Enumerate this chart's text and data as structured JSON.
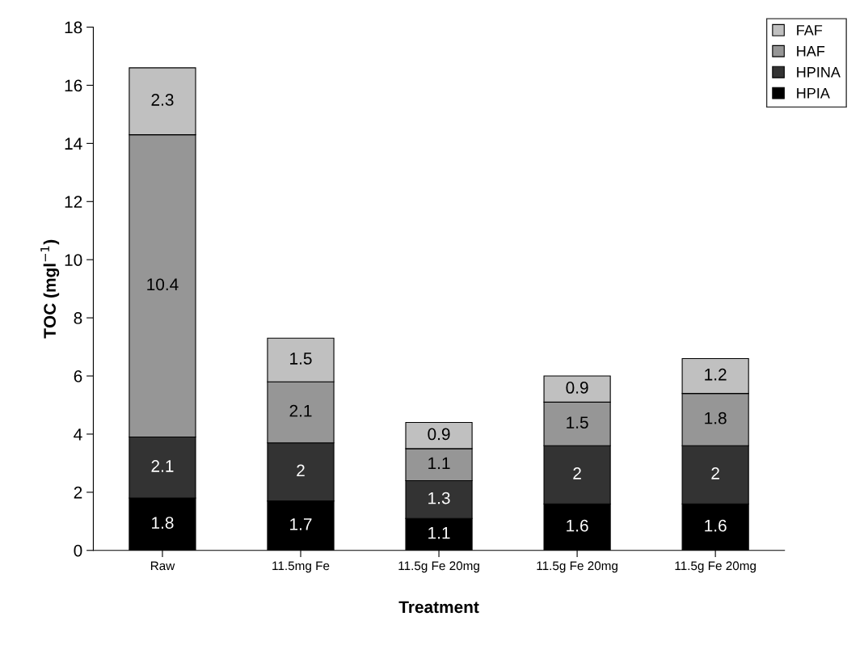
{
  "chart_data": {
    "type": "bar",
    "stacked": true,
    "xlabel": "Treatment",
    "ylabel": "TOC (mgl$^{−1}$)",
    "categories": [
      "Raw",
      "11.5mg Fe",
      "11.5g Fe 20mg",
      "11.5g Fe 20mg",
      "11.5g Fe 20mg"
    ],
    "series": [
      {
        "name": "HPIA",
        "color": "#000000",
        "values": [
          1.8,
          1.7,
          1.1,
          1.6,
          1.6
        ]
      },
      {
        "name": "HPINA",
        "color": "#333333",
        "values": [
          2.1,
          2,
          1.3,
          2,
          2
        ]
      },
      {
        "name": "HAF",
        "color": "#969696",
        "values": [
          10.4,
          2.1,
          1.1,
          1.5,
          1.8
        ]
      },
      {
        "name": "FAF",
        "color": "#c0c0c0",
        "values": [
          2.3,
          1.5,
          0.9,
          0.9,
          1.2
        ]
      }
    ],
    "ylim": [
      0,
      18
    ],
    "yticks": [
      0,
      2,
      4,
      6,
      8,
      10,
      12,
      14,
      16,
      18
    ],
    "data_labels": true,
    "grid": false,
    "legend": "top right"
  }
}
